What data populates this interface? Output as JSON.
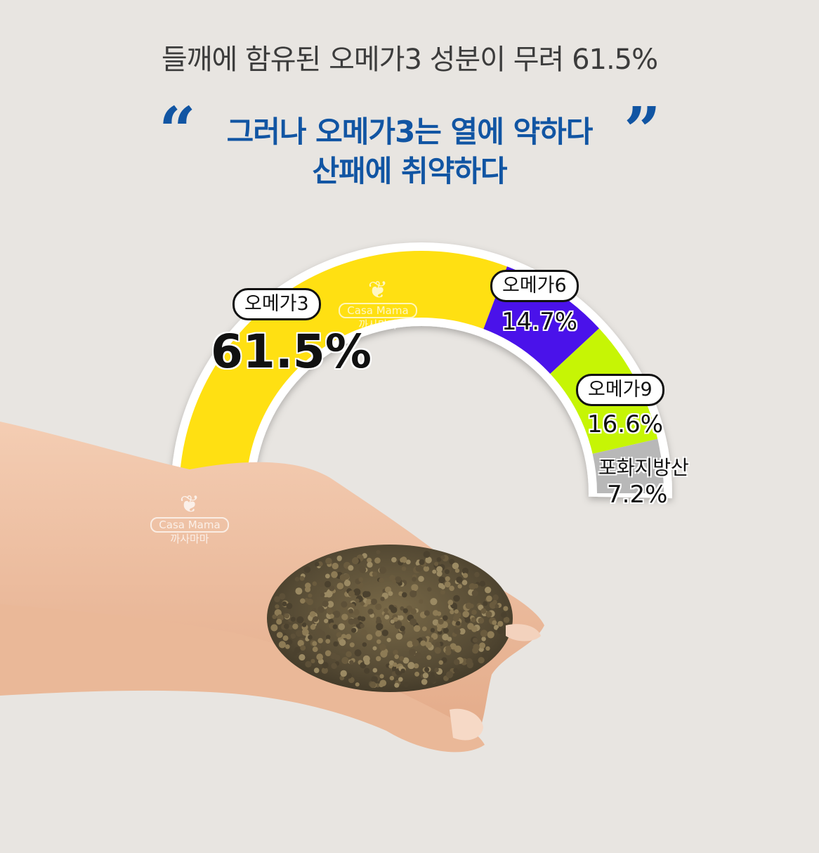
{
  "headline": "들깨에 함유된 오메가3 성분이 무려 61.5%",
  "quote": {
    "open": "“",
    "close": "”",
    "line1": "그러나 오메가3는 열에 약하다",
    "line2": "산패에 취약하다"
  },
  "watermark": {
    "logo": "Casa Mama",
    "sub": "까사마마"
  },
  "colors": {
    "headline": "#3c3c3c",
    "accent_blue": "#1155a3",
    "background": "#e8e5e1"
  },
  "chart_data": {
    "type": "pie",
    "subtype": "half-donut",
    "title": "",
    "slices": [
      {
        "name": "오메가3",
        "value": 61.5,
        "label": "61.5%",
        "color": "#ffe012"
      },
      {
        "name": "오메가6",
        "value": 14.7,
        "label": "14.7%",
        "color": "#4a12ea"
      },
      {
        "name": "오메가9",
        "value": 16.6,
        "label": "16.6%",
        "color": "#c6f505"
      },
      {
        "name": "포화지방산",
        "value": 7.2,
        "label": "7.2%",
        "color": "#b8b8b8"
      }
    ],
    "legend": "none"
  }
}
